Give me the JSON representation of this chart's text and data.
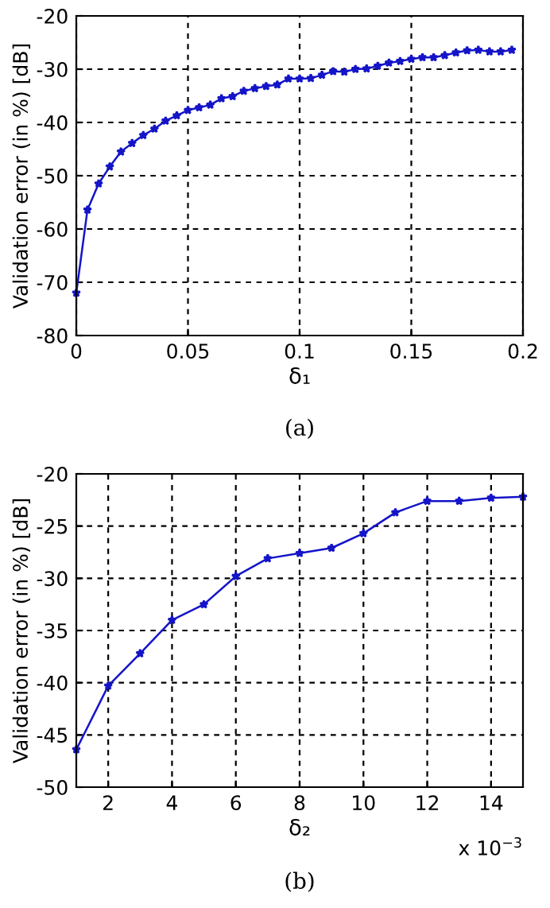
{
  "chart_data": [
    {
      "type": "line",
      "xlabel": "δ₁",
      "ylabel": "Validation error (in %) [dB]",
      "annotations": [
        "(a)"
      ],
      "x": [
        0,
        0.005,
        0.01,
        0.015,
        0.02,
        0.025,
        0.03,
        0.035,
        0.04,
        0.045,
        0.05,
        0.055,
        0.06,
        0.065,
        0.07,
        0.075,
        0.08,
        0.085,
        0.09,
        0.095,
        0.1,
        0.105,
        0.11,
        0.115,
        0.12,
        0.125,
        0.13,
        0.135,
        0.14,
        0.145,
        0.15,
        0.155,
        0.16,
        0.165,
        0.17,
        0.175,
        0.18,
        0.185,
        0.19,
        0.195
      ],
      "series": [
        {
          "color": "#1414c8",
          "values": [
            -72,
            -56.4,
            -51.5,
            -48.3,
            -45.5,
            -43.9,
            -42.4,
            -41.2,
            -39.7,
            -38.7,
            -37.7,
            -37.2,
            -36.7,
            -35.5,
            -35.1,
            -34.1,
            -33.6,
            -33.2,
            -32.9,
            -31.8,
            -31.8,
            -31.7,
            -31.1,
            -30.4,
            -30.5,
            -30,
            -29.9,
            -29.4,
            -28.8,
            -28.5,
            -28.1,
            -27.8,
            -27.8,
            -27.4,
            -26.9,
            -26.5,
            -26.4,
            -26.7,
            -26.7,
            -26.4
          ]
        }
      ],
      "xlim": [
        0,
        0.2
      ],
      "xticks": [
        0,
        0.05,
        0.1,
        0.15,
        0.2
      ],
      "ylim": [
        -80,
        -20
      ],
      "yticks": [
        -80,
        -70,
        -60,
        -50,
        -40,
        -30,
        -20
      ],
      "grid": true,
      "marker": "star",
      "line_style": "solid"
    },
    {
      "type": "line",
      "xlabel": "δ₂",
      "ylabel": "Validation error (in %) [dB]",
      "annotations": [
        "x 10$^{−3}$",
        "(b)"
      ],
      "x": [
        1,
        2,
        3,
        4,
        5,
        6,
        7,
        8,
        9,
        10,
        11,
        12,
        13,
        14,
        15
      ],
      "series": [
        {
          "color": "#1414c8",
          "values": [
            -46.4,
            -40.3,
            -37.2,
            -34,
            -32.5,
            -29.8,
            -28.1,
            -27.6,
            -27.1,
            -25.7,
            -23.7,
            -22.6,
            -22.6,
            -22.3,
            -22.2
          ]
        }
      ],
      "xlim": [
        1,
        15
      ],
      "xticks": [
        2,
        4,
        6,
        8,
        10,
        12,
        14
      ],
      "ylim": [
        -50,
        -20
      ],
      "yticks": [
        -50,
        -45,
        -40,
        -35,
        -30,
        -25,
        -20
      ],
      "grid": true,
      "marker": "star",
      "line_style": "solid"
    }
  ]
}
